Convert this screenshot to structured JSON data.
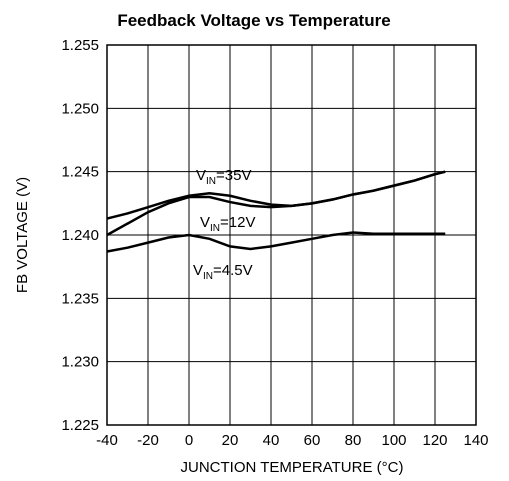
{
  "chart_data": {
    "type": "line",
    "title": "Feedback Voltage vs Temperature",
    "x_label": "JUNCTION TEMPERATURE (°C)",
    "y_label": "FB VOLTAGE (V)",
    "x": [
      -40,
      -30,
      -20,
      -10,
      0,
      10,
      20,
      30,
      40,
      50,
      60,
      70,
      80,
      90,
      100,
      110,
      120,
      125
    ],
    "series": [
      {
        "name": {
          "base": "V",
          "sub": "IN",
          "rest": "=35V"
        },
        "color": "#000000",
        "values": [
          1.2413,
          1.2417,
          1.2422,
          1.2427,
          1.2431,
          1.2433,
          1.2431,
          1.2427,
          1.2424,
          1.2423,
          1.2425,
          1.2428,
          1.2432,
          1.2435,
          1.2439,
          1.2443,
          1.2448,
          1.245
        ]
      },
      {
        "name": {
          "base": "V",
          "sub": "IN",
          "rest": "=12V"
        },
        "color": "#000000",
        "values": [
          1.24,
          1.2409,
          1.2418,
          1.2425,
          1.243,
          1.243,
          1.2426,
          1.2423,
          1.2422,
          1.2423,
          1.2425,
          1.2428,
          1.2432,
          1.2435,
          1.2439,
          1.2443,
          1.2448,
          1.245
        ]
      },
      {
        "name": {
          "base": "V",
          "sub": "IN",
          "rest": "=4.5V"
        },
        "color": "#000000",
        "values": [
          1.2387,
          1.239,
          1.2394,
          1.2398,
          1.24,
          1.2397,
          1.2391,
          1.2389,
          1.2391,
          1.2394,
          1.2397,
          1.24,
          1.2402,
          1.2401,
          1.2401,
          1.2401,
          1.2401,
          1.2401
        ]
      }
    ],
    "xlim": [
      -40,
      140
    ],
    "xticks": [
      -40,
      -20,
      0,
      20,
      40,
      60,
      80,
      100,
      120,
      140
    ],
    "ylim": [
      1.225,
      1.255
    ],
    "yticks": [
      1.225,
      {
        "value": 1.23,
        "label": "1.230"
      },
      1.235,
      {
        "value": 1.24,
        "label": "1.240"
      },
      1.245,
      {
        "value": 1.25,
        "label": "1.250"
      },
      1.255
    ],
    "grid": true
  }
}
